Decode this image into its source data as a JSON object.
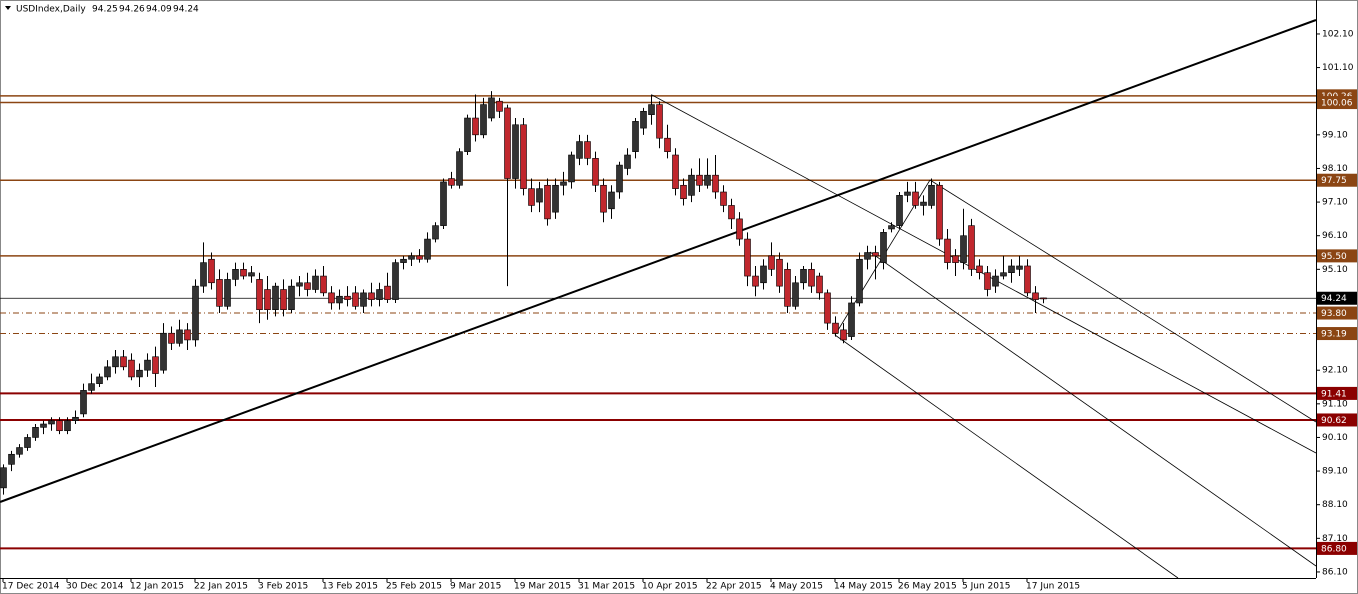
{
  "chart_data": {
    "type": "candlestick",
    "title": "USDIndex,Daily",
    "up_color": "#333333",
    "down_color": "#c1272d",
    "wick_color": "#000000",
    "ylim": [
      85.92,
      103.11
    ],
    "yticks": [
      {
        "value": 86.1,
        "label": "86.10"
      },
      {
        "value": 87.1,
        "label": "87.10"
      },
      {
        "value": 88.1,
        "label": "88.10"
      },
      {
        "value": 89.1,
        "label": "89.10"
      },
      {
        "value": 90.1,
        "label": "90.10"
      },
      {
        "value": 91.1,
        "label": "91.10"
      },
      {
        "value": 92.1,
        "label": "92.10"
      },
      {
        "value": 95.1,
        "label": "95.10"
      },
      {
        "value": 96.1,
        "label": "96.10"
      },
      {
        "value": 97.1,
        "label": "97.10"
      },
      {
        "value": 98.1,
        "label": "98.10"
      },
      {
        "value": 99.1,
        "label": "99.10"
      },
      {
        "value": 101.1,
        "label": "101.10"
      },
      {
        "value": 102.1,
        "label": "102.10"
      }
    ],
    "xticks": [
      {
        "value": 0,
        "label": "17 Dec 2014"
      },
      {
        "value": 8,
        "label": "30 Dec 2014"
      },
      {
        "value": 16,
        "label": "12 Jan 2015"
      },
      {
        "value": 24,
        "label": "22 Jan 2015"
      },
      {
        "value": 32,
        "label": "3 Feb 2015"
      },
      {
        "value": 40,
        "label": "13 Feb 2015"
      },
      {
        "value": 48,
        "label": "25 Feb 2015"
      },
      {
        "value": 56,
        "label": "9 Mar 2015"
      },
      {
        "value": 64,
        "label": "19 Mar 2015"
      },
      {
        "value": 72,
        "label": "31 Mar 2015"
      },
      {
        "value": 80,
        "label": "10 Apr 2015"
      },
      {
        "value": 88,
        "label": "22 Apr 2015"
      },
      {
        "value": 96,
        "label": "4 May 2015"
      },
      {
        "value": 104,
        "label": "14 May 2015"
      },
      {
        "value": 112,
        "label": "26 May 2015"
      },
      {
        "value": 120,
        "label": "5 Jun 2015"
      },
      {
        "value": 128,
        "label": "17 Jun 2015"
      }
    ],
    "levels": [
      {
        "value": 100.26,
        "label": "100.26",
        "color": "#8b4513",
        "style": "solid"
      },
      {
        "value": 100.06,
        "label": "100.06",
        "color": "#8b4513",
        "style": "solid"
      },
      {
        "value": 97.75,
        "label": "97.75",
        "color": "#8b4513",
        "style": "solid"
      },
      {
        "value": 95.5,
        "label": "95.50",
        "color": "#8b4513",
        "style": "solid"
      },
      {
        "value": 93.8,
        "label": "93.80",
        "color": "#8b4513",
        "style": "dashdot"
      },
      {
        "value": 93.19,
        "label": "93.19",
        "color": "#8b4513",
        "style": "dashdot"
      },
      {
        "value": 91.41,
        "label": "91.41",
        "color": "#8b0000",
        "style": "thick"
      },
      {
        "value": 90.62,
        "label": "90.62",
        "color": "#8b0000",
        "style": "thick"
      },
      {
        "value": 86.8,
        "label": "86.80",
        "color": "#8b0000",
        "style": "thick"
      }
    ],
    "open": [
      88.6,
      89.3,
      89.6,
      89.8,
      90.1,
      90.4,
      90.5,
      90.6,
      90.3,
      90.6,
      90.8,
      91.5,
      91.7,
      91.9,
      92.2,
      92.5,
      92.4,
      91.9,
      92.1,
      92.5,
      92.1,
      93.2,
      92.9,
      93.3,
      93.0,
      94.6,
      95.4,
      94.8,
      94.0,
      94.8,
      95.1,
      94.9,
      94.8,
      94.5,
      93.9,
      94.5,
      93.9,
      94.6,
      94.7,
      94.5,
      94.9,
      94.4,
      94.1,
      94.3,
      94.4,
      94.0,
      94.4,
      94.2,
      94.6,
      94.2,
      95.3,
      95.4,
      95.5,
      95.4,
      96.0,
      96.4,
      97.8,
      97.6,
      98.6,
      99.6,
      99.1,
      99.6,
      100.1,
      99.9,
      97.8,
      99.4,
      97.5,
      97.1,
      97.6,
      96.8,
      97.6,
      97.7,
      98.4,
      98.9,
      98.4,
      97.6,
      96.9,
      97.4,
      98.1,
      98.6,
      99.3,
      99.7,
      100.0,
      99.0,
      98.5,
      97.6,
      97.3,
      97.9,
      97.6,
      97.9,
      97.4,
      97.0,
      96.6,
      96.0,
      94.9,
      94.7,
      95.5,
      95.4,
      95.1,
      94.0,
      94.7,
      95.1,
      94.9,
      94.4,
      93.5,
      93.3,
      93.1,
      94.1,
      95.4,
      95.6,
      95.3,
      96.3,
      96.4,
      97.3,
      97.4,
      97.0,
      97.0,
      97.6,
      96.0,
      95.5,
      95.3,
      96.4,
      95.2,
      95.0,
      94.6,
      94.9,
      95.0,
      95.1,
      95.2,
      94.4,
      94.25
    ],
    "high": [
      89.3,
      89.7,
      89.9,
      90.2,
      90.5,
      90.6,
      90.7,
      90.7,
      90.7,
      90.9,
      91.7,
      92.0,
      92.0,
      92.4,
      92.7,
      92.7,
      92.6,
      92.3,
      92.6,
      92.8,
      93.5,
      93.4,
      93.6,
      93.5,
      94.8,
      95.9,
      95.6,
      95.1,
      95.0,
      95.3,
      95.3,
      95.2,
      95.0,
      94.9,
      94.7,
      94.8,
      94.8,
      94.9,
      95.0,
      95.1,
      95.2,
      94.6,
      94.5,
      94.6,
      94.6,
      94.5,
      94.7,
      94.7,
      95.0,
      95.4,
      95.5,
      95.6,
      95.7,
      96.2,
      96.5,
      97.8,
      98.0,
      98.7,
      99.7,
      100.3,
      100.2,
      100.4,
      100.2,
      100.0,
      99.6,
      99.6,
      97.8,
      97.7,
      97.8,
      97.8,
      98.0,
      98.6,
      99.1,
      99.1,
      98.6,
      97.8,
      97.6,
      98.3,
      98.7,
      99.6,
      99.9,
      100.3,
      100.1,
      99.4,
      98.7,
      97.8,
      98.1,
      98.4,
      98.4,
      98.5,
      97.6,
      97.2,
      96.8,
      96.2,
      95.2,
      95.4,
      95.9,
      95.6,
      95.3,
      94.9,
      95.2,
      95.3,
      95.0,
      94.5,
      93.7,
      93.5,
      94.3,
      95.6,
      95.8,
      95.8,
      96.3,
      96.5,
      97.4,
      97.7,
      97.7,
      97.3,
      97.8,
      97.7,
      96.3,
      95.7,
      96.9,
      96.6,
      95.4,
      95.2,
      95.1,
      95.5,
      95.4,
      95.5,
      95.4,
      94.6,
      94.26
    ],
    "low": [
      88.4,
      89.1,
      89.5,
      89.7,
      90.0,
      90.2,
      90.3,
      90.2,
      90.2,
      90.5,
      90.7,
      91.4,
      91.6,
      91.8,
      92.0,
      92.1,
      91.8,
      91.6,
      91.9,
      91.6,
      92.0,
      92.7,
      92.8,
      92.7,
      92.8,
      94.4,
      94.5,
      93.8,
      93.9,
      94.6,
      94.8,
      94.7,
      93.5,
      93.6,
      93.7,
      93.7,
      93.8,
      94.3,
      94.3,
      94.4,
      94.3,
      93.9,
      93.9,
      94.0,
      93.9,
      93.8,
      94.0,
      94.0,
      94.1,
      94.1,
      95.1,
      95.2,
      95.3,
      95.3,
      95.9,
      96.3,
      97.5,
      97.5,
      98.5,
      98.9,
      99.0,
      99.5,
      99.6,
      94.6,
      97.5,
      97.3,
      96.8,
      96.8,
      96.4,
      96.6,
      97.3,
      97.5,
      98.2,
      98.2,
      97.4,
      96.5,
      96.6,
      97.2,
      97.9,
      98.4,
      99.1,
      99.4,
      98.7,
      98.4,
      97.3,
      97.0,
      97.1,
      97.4,
      97.5,
      97.2,
      96.8,
      96.3,
      95.8,
      94.6,
      94.3,
      94.5,
      94.9,
      94.4,
      93.8,
      93.9,
      94.5,
      94.4,
      94.2,
      93.3,
      93.1,
      92.9,
      93.0,
      94.0,
      95.1,
      94.8,
      95.1,
      96.2,
      96.3,
      97.1,
      96.9,
      96.7,
      96.9,
      95.8,
      95.1,
      94.9,
      95.1,
      94.9,
      94.8,
      94.3,
      94.4,
      94.8,
      94.7,
      94.9,
      94.3,
      93.8,
      94.09
    ],
    "close": [
      89.2,
      89.6,
      89.8,
      90.1,
      90.4,
      90.5,
      90.6,
      90.3,
      90.6,
      90.7,
      91.5,
      91.7,
      91.9,
      92.2,
      92.5,
      92.2,
      91.9,
      92.1,
      92.4,
      92.0,
      93.2,
      92.9,
      93.3,
      93.0,
      94.6,
      95.3,
      94.7,
      94.0,
      94.8,
      95.1,
      94.9,
      95.0,
      93.9,
      93.9,
      94.6,
      93.9,
      94.6,
      94.7,
      94.5,
      94.9,
      94.4,
      94.1,
      94.3,
      94.2,
      94.0,
      94.4,
      94.2,
      94.5,
      94.2,
      95.3,
      95.4,
      95.5,
      95.4,
      96.0,
      96.4,
      97.7,
      97.6,
      98.6,
      99.6,
      99.1,
      100.0,
      100.2,
      99.8,
      97.8,
      99.4,
      97.5,
      97.0,
      97.5,
      96.6,
      97.6,
      97.7,
      98.5,
      98.9,
      98.4,
      97.6,
      96.8,
      97.4,
      98.2,
      98.5,
      99.5,
      99.8,
      100.0,
      99.0,
      98.6,
      97.5,
      97.2,
      97.9,
      97.6,
      97.9,
      97.4,
      97.0,
      96.6,
      96.0,
      94.9,
      94.6,
      95.2,
      95.1,
      94.6,
      94.0,
      94.7,
      95.1,
      94.6,
      94.4,
      93.5,
      93.2,
      93.0,
      94.1,
      95.4,
      95.6,
      95.5,
      96.2,
      96.4,
      97.3,
      97.4,
      97.0,
      97.1,
      97.6,
      96.0,
      95.3,
      95.3,
      96.1,
      95.1,
      95.0,
      94.5,
      94.9,
      95.0,
      95.2,
      95.2,
      94.4,
      94.2,
      94.24
    ]
  }
}
